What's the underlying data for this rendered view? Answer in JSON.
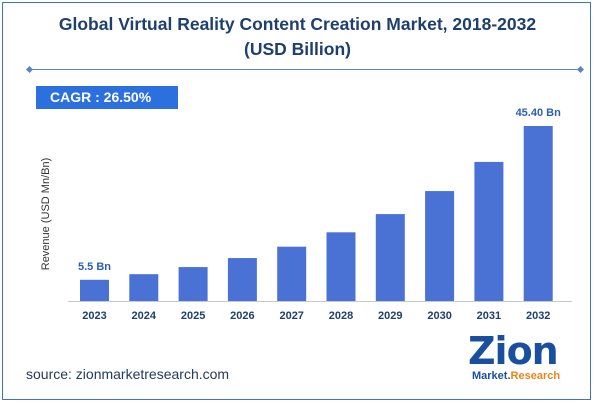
{
  "title_line1": "Global Virtual Reality Content Creation Market, 2018-2032",
  "title_line2": "(USD Billion)",
  "cagr": "CAGR : 26.50%",
  "source": "source: zionmarketresearch.com",
  "logo": {
    "main": "Zion",
    "sub_part1": "Market",
    "sub_part2": "Research"
  },
  "colors": {
    "bar": "#4a72d4",
    "accent": "#2c6fde",
    "title": "#1f3f6e"
  },
  "chart_data": {
    "type": "bar",
    "categories": [
      "2023",
      "2024",
      "2025",
      "2026",
      "2027",
      "2028",
      "2029",
      "2030",
      "2031",
      "2032"
    ],
    "values": [
      5.5,
      6.96,
      8.8,
      11.14,
      14.09,
      17.82,
      22.55,
      28.52,
      36.08,
      45.4
    ],
    "data_labels": [
      {
        "category": "2023",
        "text": "5.5 Bn"
      },
      {
        "category": "2032",
        "text": "45.40 Bn"
      }
    ],
    "ylabel": "Revenue (USD Mn/Bn)",
    "xlabel": "",
    "ylim": [
      0,
      45.4
    ],
    "grid": false,
    "legend": "none"
  }
}
